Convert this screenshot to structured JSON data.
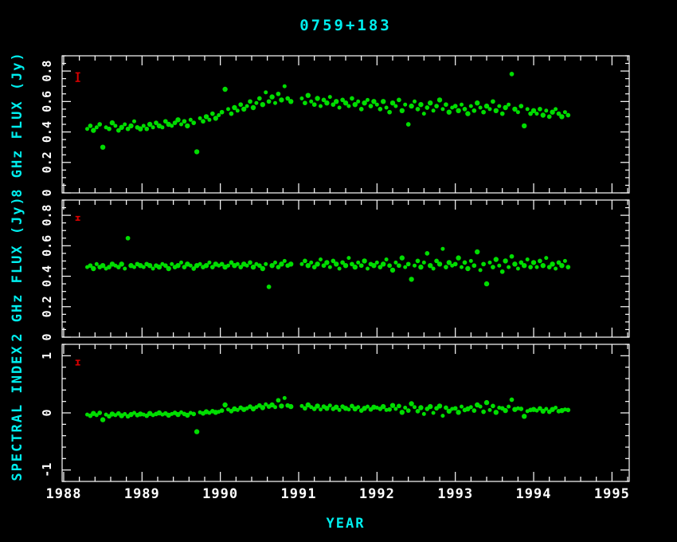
{
  "colors": {
    "background": "#000000",
    "axis": "#ffffff",
    "label": "#00eeee",
    "point": "#00dd00",
    "errorbar": "#dd0000"
  },
  "chart_data": {
    "type": "scatter",
    "title": "0759+183",
    "xlabel": "YEAR",
    "x_range": [
      1987.98,
      1995.22
    ],
    "x_ticks": [
      1988,
      1989,
      1990,
      1991,
      1992,
      1993,
      1994,
      1995
    ],
    "x_minor_step": 0.2,
    "legend": "none",
    "grid": false,
    "x": [
      1988.3,
      1988.34,
      1988.38,
      1988.42,
      1988.46,
      1988.5,
      1988.54,
      1988.58,
      1988.62,
      1988.66,
      1988.7,
      1988.74,
      1988.78,
      1988.82,
      1988.86,
      1988.9,
      1988.94,
      1988.98,
      1989.02,
      1989.06,
      1989.1,
      1989.14,
      1989.18,
      1989.22,
      1989.26,
      1989.3,
      1989.34,
      1989.38,
      1989.42,
      1989.46,
      1989.5,
      1989.54,
      1989.58,
      1989.62,
      1989.66,
      1989.7,
      1989.74,
      1989.78,
      1989.82,
      1989.86,
      1989.9,
      1989.94,
      1989.98,
      1990.02,
      1990.06,
      1990.1,
      1990.14,
      1990.18,
      1990.22,
      1990.26,
      1990.3,
      1990.34,
      1990.38,
      1990.42,
      1990.46,
      1990.5,
      1990.54,
      1990.58,
      1990.62,
      1990.66,
      1990.7,
      1990.74,
      1990.78,
      1990.82,
      1990.86,
      1990.9,
      1991.04,
      1991.08,
      1991.12,
      1991.16,
      1991.2,
      1991.24,
      1991.28,
      1991.32,
      1991.36,
      1991.4,
      1991.44,
      1991.48,
      1991.52,
      1991.56,
      1991.6,
      1991.64,
      1991.68,
      1991.72,
      1991.76,
      1991.8,
      1991.84,
      1991.88,
      1991.92,
      1991.96,
      1992.0,
      1992.04,
      1992.08,
      1992.12,
      1992.16,
      1992.2,
      1992.24,
      1992.28,
      1992.32,
      1992.36,
      1992.4,
      1992.44,
      1992.48,
      1992.52,
      1992.56,
      1992.6,
      1992.64,
      1992.68,
      1992.72,
      1992.76,
      1992.8,
      1992.84,
      1992.88,
      1992.92,
      1992.96,
      1993.0,
      1993.04,
      1993.08,
      1993.12,
      1993.16,
      1993.2,
      1993.24,
      1993.28,
      1993.32,
      1993.36,
      1993.4,
      1993.44,
      1993.48,
      1993.52,
      1993.56,
      1993.6,
      1993.64,
      1993.68,
      1993.72,
      1993.76,
      1993.8,
      1993.84,
      1993.88,
      1993.92,
      1993.96,
      1994.0,
      1994.04,
      1994.08,
      1994.12,
      1994.16,
      1994.2,
      1994.24,
      1994.28,
      1994.32,
      1994.36,
      1994.4,
      1994.44
    ],
    "panels": [
      {
        "ylabel": "8 GHz FLUX (Jy)",
        "ylim": [
          0,
          0.9
        ],
        "yticks": [
          0,
          0.2,
          0.4,
          0.6,
          0.8
        ],
        "ytick_labels": [
          "0",
          "0.2",
          "0.4",
          "0.6",
          "0.8"
        ],
        "y_minor_step": 0.05,
        "errorbar": {
          "x": 1988.18,
          "y": 0.76,
          "half": 0.028
        },
        "y": [
          0.42,
          0.44,
          0.41,
          0.43,
          0.45,
          0.3,
          0.43,
          0.42,
          0.46,
          0.44,
          0.41,
          0.43,
          0.45,
          0.42,
          0.44,
          0.47,
          0.43,
          0.42,
          0.44,
          0.42,
          0.45,
          0.43,
          0.46,
          0.44,
          0.43,
          0.47,
          0.45,
          0.44,
          0.46,
          0.48,
          0.45,
          0.47,
          0.44,
          0.48,
          0.46,
          0.27,
          0.49,
          0.47,
          0.5,
          0.48,
          0.52,
          0.49,
          0.51,
          0.53,
          0.68,
          0.55,
          0.52,
          0.56,
          0.54,
          0.58,
          0.55,
          0.57,
          0.6,
          0.56,
          0.59,
          0.62,
          0.58,
          0.66,
          0.6,
          0.63,
          0.59,
          0.65,
          0.61,
          0.7,
          0.62,
          0.6,
          0.62,
          0.59,
          0.64,
          0.6,
          0.58,
          0.62,
          0.57,
          0.61,
          0.59,
          0.63,
          0.58,
          0.6,
          0.56,
          0.61,
          0.59,
          0.57,
          0.62,
          0.58,
          0.6,
          0.55,
          0.59,
          0.61,
          0.57,
          0.6,
          0.58,
          0.55,
          0.6,
          0.56,
          0.53,
          0.59,
          0.57,
          0.61,
          0.54,
          0.58,
          0.45,
          0.57,
          0.6,
          0.55,
          0.58,
          0.52,
          0.56,
          0.59,
          0.54,
          0.57,
          0.61,
          0.55,
          0.58,
          0.53,
          0.56,
          0.57,
          0.54,
          0.58,
          0.55,
          0.52,
          0.57,
          0.54,
          0.59,
          0.56,
          0.53,
          0.57,
          0.55,
          0.6,
          0.54,
          0.57,
          0.52,
          0.56,
          0.58,
          0.78,
          0.55,
          0.53,
          0.57,
          0.44,
          0.55,
          0.52,
          0.54,
          0.52,
          0.55,
          0.51,
          0.54,
          0.5,
          0.53,
          0.55,
          0.52,
          0.5,
          0.53,
          0.51
        ]
      },
      {
        "ylabel": "2 GHz FLUX (Jy)",
        "ylim": [
          0,
          0.9
        ],
        "yticks": [
          0,
          0.2,
          0.4,
          0.6,
          0.8
        ],
        "ytick_labels": [
          "0",
          "0.2",
          "0.4",
          "0.6",
          "0.8"
        ],
        "y_minor_step": 0.05,
        "errorbar": {
          "x": 1988.18,
          "y": 0.78,
          "half": 0.012
        },
        "y": [
          0.46,
          0.47,
          0.45,
          0.48,
          0.46,
          0.47,
          0.45,
          0.46,
          0.48,
          0.47,
          0.46,
          0.48,
          0.45,
          0.65,
          0.47,
          0.46,
          0.48,
          0.47,
          0.46,
          0.48,
          0.47,
          0.45,
          0.47,
          0.46,
          0.48,
          0.47,
          0.45,
          0.48,
          0.46,
          0.47,
          0.49,
          0.46,
          0.48,
          0.47,
          0.45,
          0.47,
          0.48,
          0.46,
          0.47,
          0.49,
          0.46,
          0.48,
          0.47,
          0.48,
          0.46,
          0.47,
          0.49,
          0.47,
          0.48,
          0.46,
          0.48,
          0.47,
          0.49,
          0.46,
          0.48,
          0.47,
          0.45,
          0.48,
          0.33,
          0.47,
          0.49,
          0.46,
          0.48,
          0.5,
          0.47,
          0.48,
          0.48,
          0.5,
          0.47,
          0.49,
          0.46,
          0.48,
          0.51,
          0.47,
          0.49,
          0.46,
          0.5,
          0.48,
          0.45,
          0.49,
          0.47,
          0.52,
          0.48,
          0.46,
          0.49,
          0.47,
          0.5,
          0.45,
          0.48,
          0.47,
          0.49,
          0.46,
          0.48,
          0.51,
          0.47,
          0.44,
          0.49,
          0.47,
          0.52,
          0.46,
          0.48,
          0.38,
          0.47,
          0.5,
          0.46,
          0.49,
          0.55,
          0.47,
          0.45,
          0.5,
          0.48,
          0.58,
          0.46,
          0.49,
          0.47,
          0.48,
          0.52,
          0.46,
          0.49,
          0.45,
          0.5,
          0.47,
          0.56,
          0.44,
          0.48,
          0.35,
          0.49,
          0.46,
          0.51,
          0.47,
          0.43,
          0.5,
          0.46,
          0.53,
          0.48,
          0.45,
          0.49,
          0.47,
          0.51,
          0.46,
          0.49,
          0.46,
          0.5,
          0.47,
          0.52,
          0.46,
          0.48,
          0.45,
          0.49,
          0.47,
          0.5,
          0.46
        ]
      },
      {
        "ylabel": "SPECTRAL INDEX",
        "ylim": [
          -1.2,
          1.2
        ],
        "yticks": [
          -1,
          0,
          1
        ],
        "ytick_labels": [
          "-1",
          "0",
          "1"
        ],
        "y_minor_step": 0.2,
        "errorbar": {
          "x": 1988.18,
          "y": 0.88,
          "half": 0.04
        },
        "y": [
          -0.03,
          -0.05,
          -0.01,
          -0.04,
          0.0,
          -0.12,
          -0.03,
          -0.06,
          -0.02,
          -0.04,
          -0.01,
          -0.05,
          -0.02,
          -0.06,
          -0.03,
          0.0,
          -0.04,
          -0.02,
          -0.03,
          -0.05,
          -0.01,
          -0.04,
          -0.02,
          0.0,
          -0.03,
          -0.01,
          -0.04,
          -0.02,
          0.0,
          -0.03,
          0.01,
          -0.02,
          -0.04,
          0.0,
          -0.02,
          -0.33,
          0.01,
          -0.01,
          0.02,
          0.0,
          0.03,
          0.01,
          0.02,
          0.04,
          0.14,
          0.06,
          0.03,
          0.07,
          0.05,
          0.09,
          0.06,
          0.08,
          0.11,
          0.07,
          0.1,
          0.13,
          0.09,
          0.15,
          0.11,
          0.14,
          0.1,
          0.22,
          0.12,
          0.26,
          0.13,
          0.11,
          0.12,
          0.08,
          0.14,
          0.1,
          0.07,
          0.12,
          0.06,
          0.11,
          0.08,
          0.13,
          0.07,
          0.1,
          0.05,
          0.11,
          0.08,
          0.06,
          0.12,
          0.07,
          0.1,
          0.04,
          0.08,
          0.11,
          0.06,
          0.1,
          0.09,
          0.07,
          0.11,
          0.05,
          0.06,
          0.13,
          0.07,
          0.12,
          0.01,
          0.09,
          0.04,
          0.16,
          0.1,
          0.03,
          0.09,
          -0.02,
          0.07,
          0.11,
          0.0,
          0.08,
          0.12,
          -0.05,
          0.09,
          0.03,
          0.07,
          0.08,
          0.01,
          0.11,
          0.05,
          0.07,
          0.1,
          0.04,
          0.14,
          0.11,
          0.02,
          0.18,
          0.05,
          0.12,
          0.01,
          0.09,
          0.08,
          0.04,
          0.11,
          0.23,
          0.06,
          0.08,
          0.07,
          -0.06,
          0.03,
          0.05,
          0.06,
          0.04,
          0.08,
          0.03,
          0.07,
          0.02,
          0.06,
          0.09,
          0.03,
          0.04,
          0.06,
          0.05
        ]
      }
    ]
  }
}
